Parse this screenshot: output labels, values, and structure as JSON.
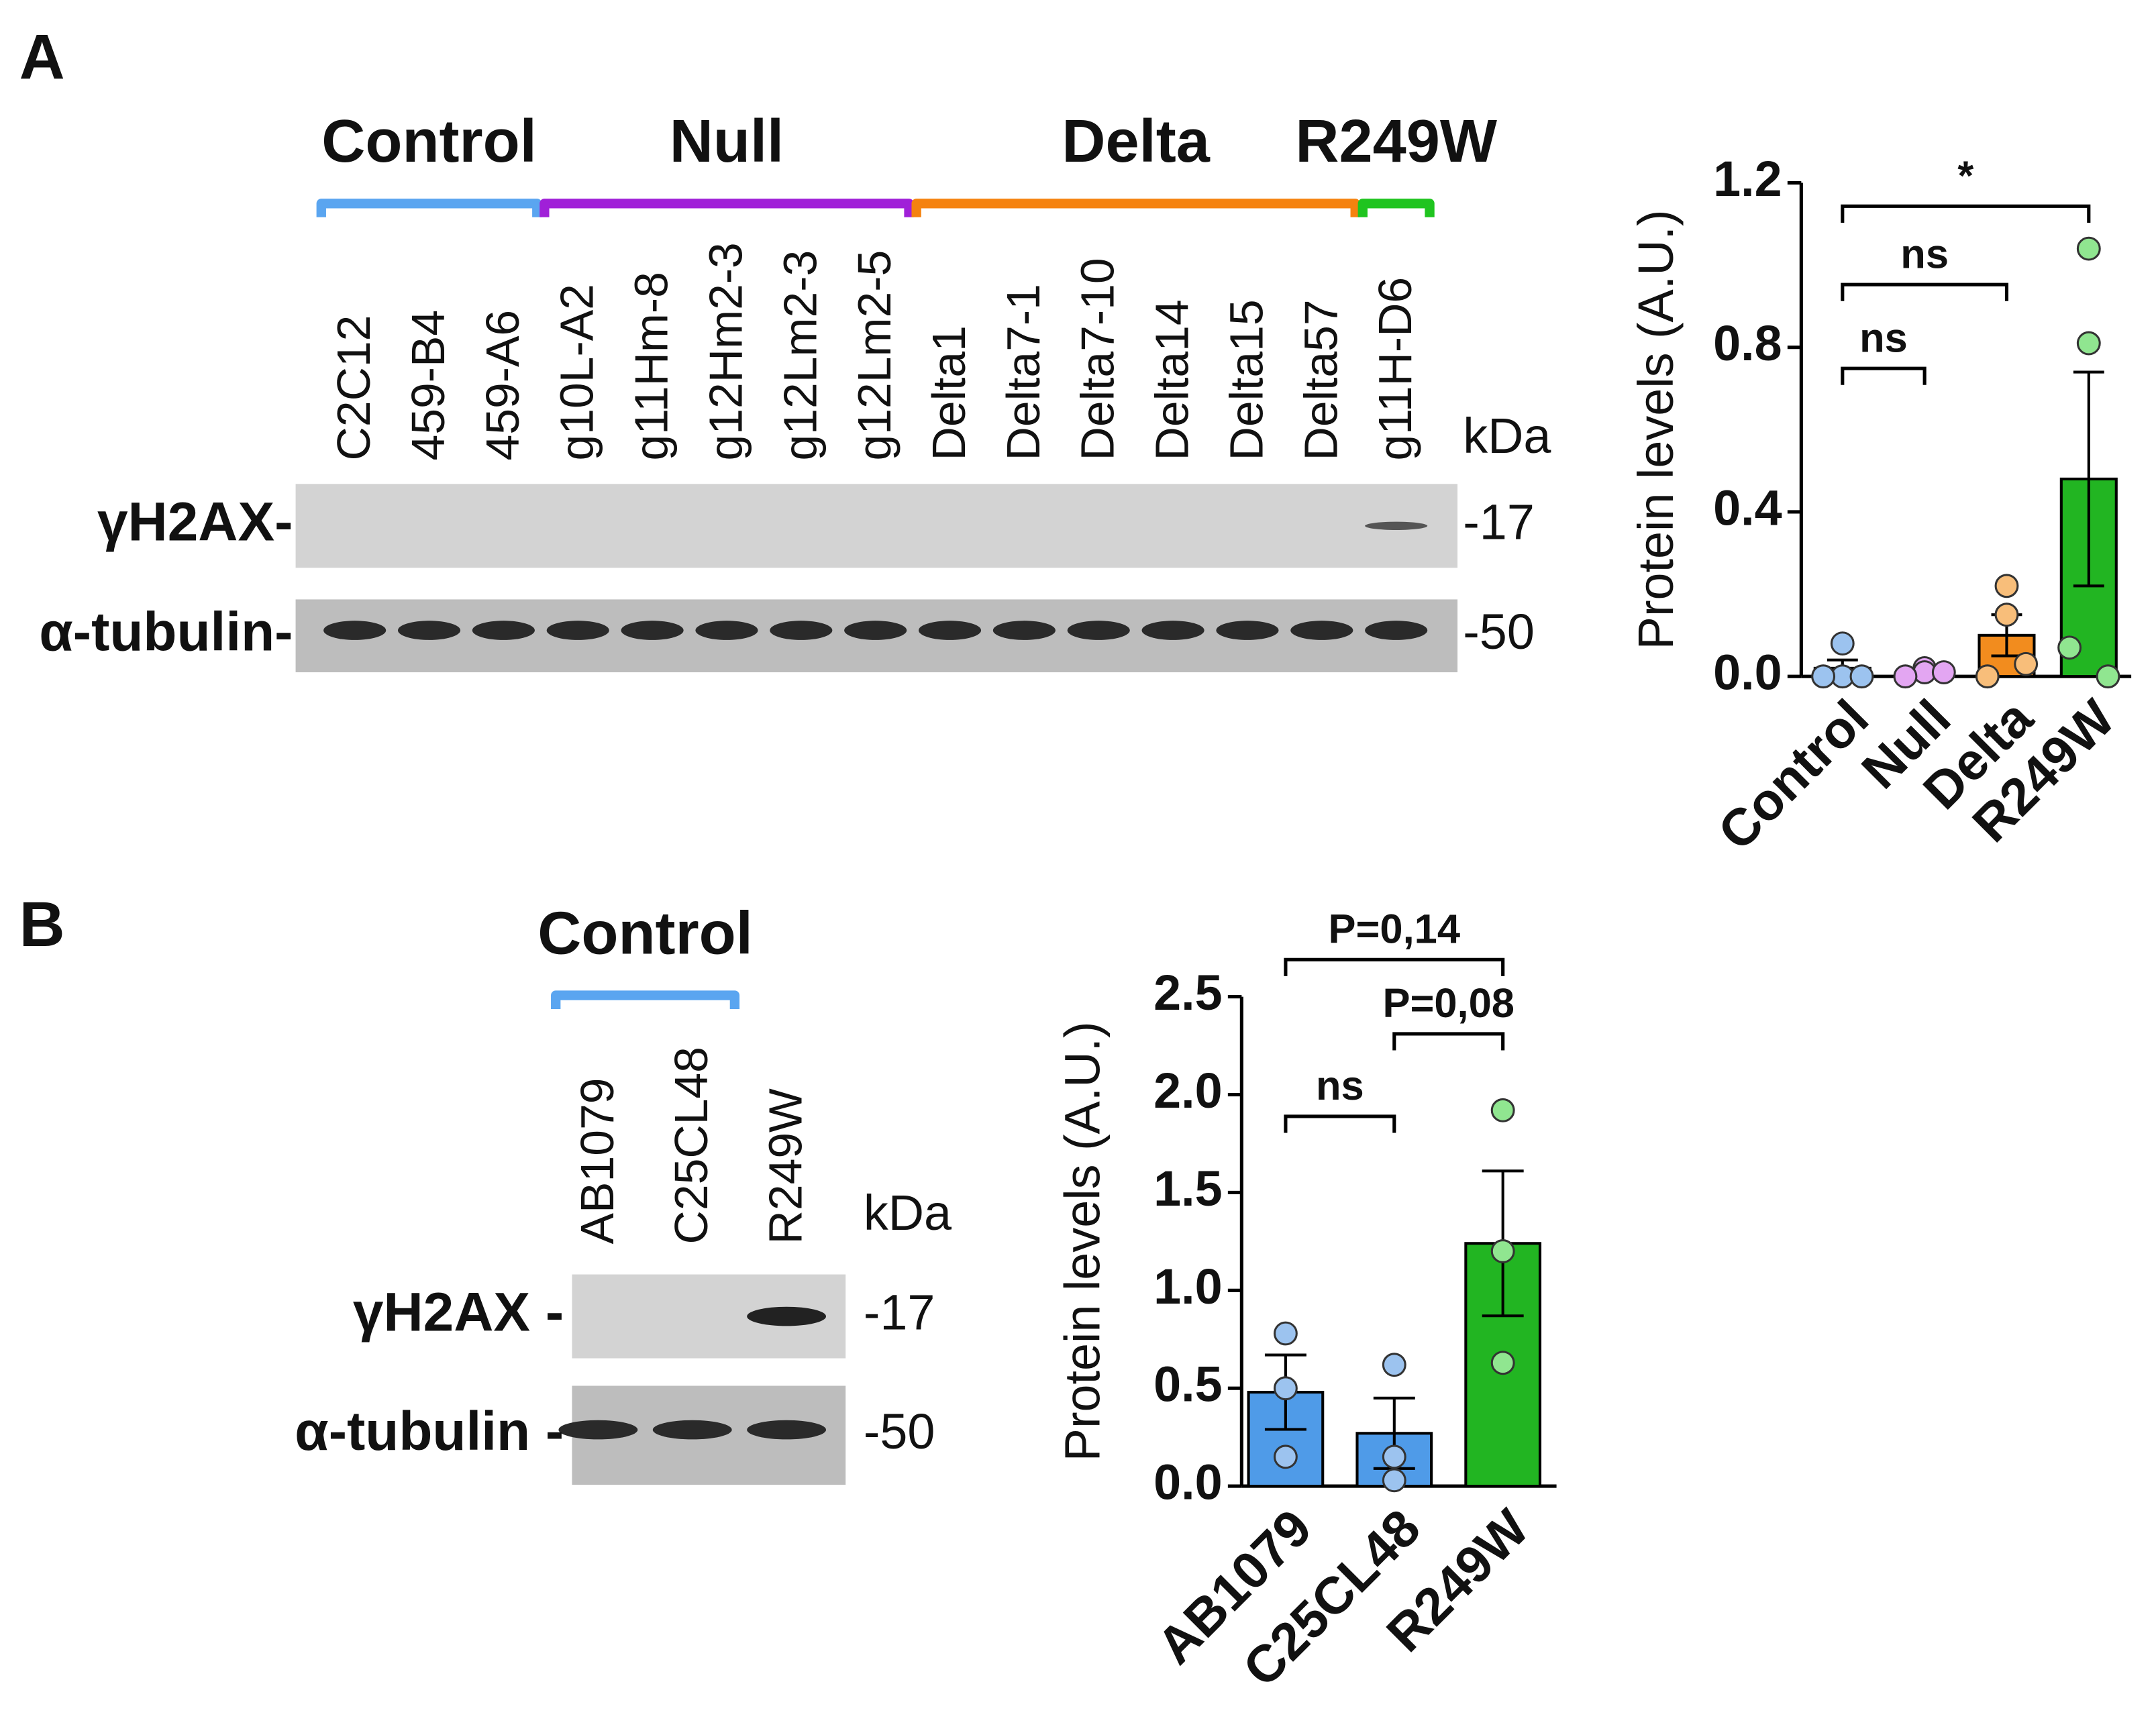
{
  "panels": [
    {
      "label": "A",
      "blot": {
        "lanes": [
          "C2C12",
          "459-B4",
          "459-A6",
          "g10L-A2",
          "g11Hm-8",
          "g12Hm2-3",
          "g12Lm2-3",
          "g12Lm2-5",
          "Delta1",
          "Delta7-1",
          "Delta7-10",
          "Delta14",
          "Delta15",
          "Delta57",
          "g11H-D6"
        ],
        "groups": [
          {
            "name": "Control",
            "color": "#5aa5f0",
            "members": [
              "C2C12",
              "459-A6"
            ]
          },
          {
            "name": "Null",
            "color": "#a020d8",
            "members": [
              "g10L-A2",
              "g12Lm2-5"
            ]
          },
          {
            "name": "Delta",
            "color": "#f5820f",
            "members": [
              "Delta1",
              "Delta57"
            ]
          },
          {
            "name": "R249W",
            "color": "#1fc41f",
            "members": [
              "g11H-D6",
              "g11H-D6"
            ]
          }
        ],
        "row_labels": [
          "γH2AX-",
          "α-tubulin-"
        ],
        "kda": "kDa",
        "markers": [
          "-17",
          "-50"
        ]
      }
    },
    {
      "label": "B",
      "blot": {
        "lanes": [
          "AB1079",
          "C25CL48",
          "R249W"
        ],
        "groups": [
          {
            "name": "Control",
            "color": "#5aa5f0",
            "members": [
              "AB1079",
              "C25CL48"
            ]
          }
        ],
        "row_labels": [
          "γH2AX -",
          "α-tubulin -"
        ],
        "kda": "kDa",
        "markers": [
          "-17",
          "-50"
        ]
      }
    }
  ],
  "chart_data": [
    {
      "type": "bar",
      "ylabel": "Protein levels (A.U.)",
      "categories": [
        "Control",
        "Null",
        "Delta",
        "R249W"
      ],
      "values": [
        0.02,
        0.01,
        0.1,
        0.48
      ],
      "errors": [
        0.02,
        0.005,
        0.05,
        0.26
      ],
      "points": [
        [
          0.08,
          0.0,
          0.0,
          0.0
        ],
        [
          0.02,
          0.01,
          0.0,
          0.01
        ],
        [
          0.22,
          0.15,
          0.0,
          0.03
        ],
        [
          1.04,
          0.81,
          0.07,
          0.0
        ]
      ],
      "colors": [
        "#4f9be8",
        "#cc66dd",
        "#f28c1e",
        "#22b522"
      ],
      "point_colors": [
        "#9cc3ef",
        "#e3a6f2",
        "#f8be7a",
        "#90e690"
      ],
      "ylim": [
        0,
        1.2
      ],
      "yticks": [
        {
          "value": 0,
          "label": "0.0"
        },
        0.4,
        0.8,
        1.2
      ],
      "comparisons": [
        {
          "groups": [
            "Control",
            "Null"
          ],
          "label": "ns"
        },
        {
          "groups": [
            "Control",
            "Delta"
          ],
          "label": "ns"
        },
        {
          "groups": [
            "Control",
            "R249W"
          ],
          "label": "*"
        }
      ]
    },
    {
      "type": "bar",
      "ylabel": "Protein levels (A.U.)",
      "categories": [
        "AB1079",
        "C25CL48",
        "R249W"
      ],
      "values": [
        0.48,
        0.27,
        1.24
      ],
      "errors": [
        0.19,
        0.18,
        0.37
      ],
      "points": [
        [
          0.78,
          0.5,
          0.15
        ],
        [
          0.62,
          0.15,
          0.03
        ],
        [
          1.92,
          1.2,
          0.63
        ]
      ],
      "colors": [
        "#4f9be8",
        "#4f9be8",
        "#22b522"
      ],
      "point_colors": [
        "#9cc3ef",
        "#9cc3ef",
        "#90e690"
      ],
      "ylim": [
        0,
        2.5
      ],
      "yticks": [
        {
          "value": 0,
          "label": "0.0"
        },
        0.5,
        {
          "value": 1,
          "label": "1.0"
        },
        1.5,
        {
          "value": 2,
          "label": "2.0"
        },
        2.5
      ],
      "comparisons": [
        {
          "groups": [
            "AB1079",
            "C25CL48"
          ],
          "label": "ns"
        },
        {
          "groups": [
            "C25CL48",
            "R249W"
          ],
          "label": "P=0,08"
        },
        {
          "groups": [
            "AB1079",
            "R249W"
          ],
          "label": "P=0,14"
        }
      ]
    }
  ]
}
